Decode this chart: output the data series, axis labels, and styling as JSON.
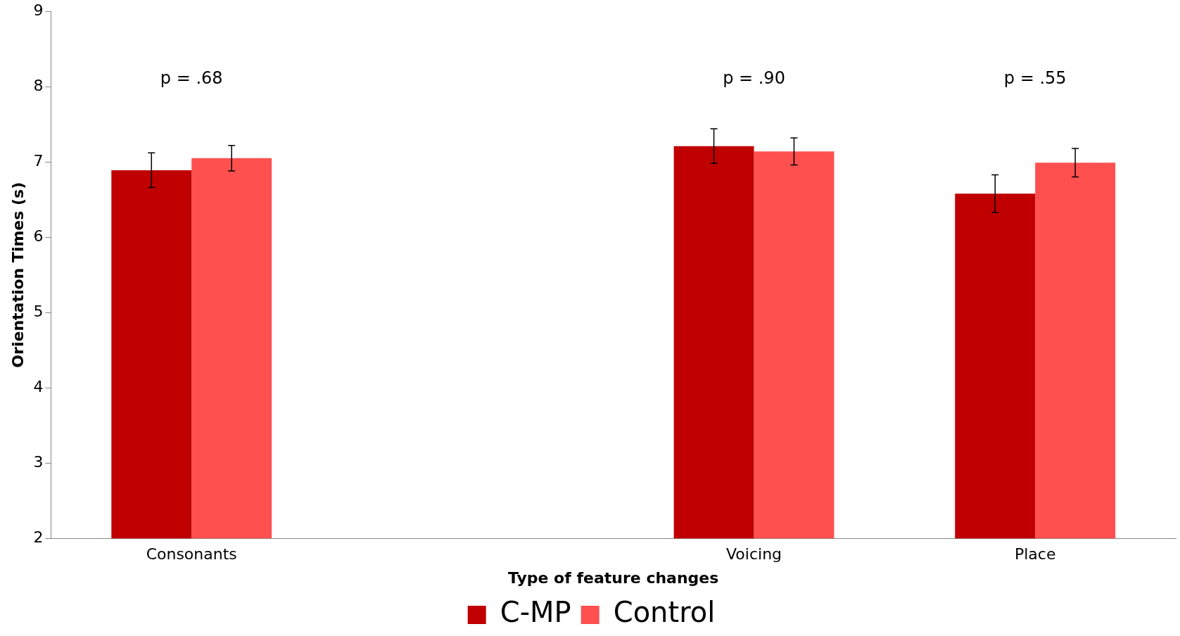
{
  "chart_data": {
    "type": "bar",
    "xlabel": "Type of feature changes",
    "ylabel": "Orientation Times (s)",
    "categories": [
      "Consonants",
      null,
      "Voicing",
      "Place"
    ],
    "series": [
      {
        "name": "C-MP",
        "color": "#c00000",
        "values": [
          6.89,
          null,
          7.21,
          6.58
        ],
        "errors": [
          0.23,
          null,
          0.23,
          0.25
        ]
      },
      {
        "name": "Control",
        "color": "#ff5050",
        "values": [
          7.05,
          null,
          7.14,
          6.99
        ],
        "errors": [
          0.17,
          null,
          0.18,
          0.19
        ]
      }
    ],
    "ylim": [
      2,
      9
    ],
    "yticks": [
      2,
      3,
      4,
      5,
      6,
      7,
      8,
      9
    ],
    "grid": false,
    "legend": "bottom",
    "annotations": [
      "p = .68",
      "p = .90",
      "p = .55"
    ]
  }
}
